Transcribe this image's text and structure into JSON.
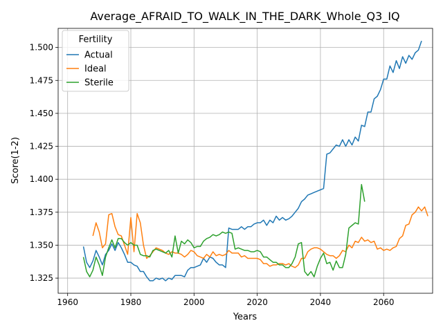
{
  "chart_data": {
    "type": "line",
    "title": "Average_AFRAID_TO_WALK_IN_THE_DARK_Whole_Q3_IQ",
    "xlabel": "Years",
    "ylabel": "Score(1-2)",
    "xlim": [
      1957,
      2075.5
    ],
    "ylim": [
      1.3135,
      1.5145
    ],
    "xticks": [
      1960,
      1980,
      2000,
      2020,
      2040,
      2060
    ],
    "yticks": [
      1.325,
      1.35,
      1.375,
      1.4,
      1.425,
      1.45,
      1.475,
      1.5
    ],
    "ytick_labels": [
      "1.325",
      "1.350",
      "1.375",
      "1.400",
      "1.425",
      "1.450",
      "1.475",
      "1.500"
    ],
    "grid": true,
    "legend": {
      "title": "Fertility",
      "placement": "top-left"
    },
    "series": [
      {
        "name": "Actual",
        "color": "#1f77b4",
        "x_start": 1965,
        "values": [
          1.349,
          1.337,
          1.333,
          1.338,
          1.346,
          1.341,
          1.335,
          1.343,
          1.346,
          1.351,
          1.346,
          1.352,
          1.348,
          1.343,
          1.337,
          1.337,
          1.335,
          1.334,
          1.33,
          1.33,
          1.326,
          1.323,
          1.323,
          1.325,
          1.324,
          1.325,
          1.323,
          1.325,
          1.324,
          1.327,
          1.327,
          1.327,
          1.326,
          1.331,
          1.333,
          1.333,
          1.334,
          1.335,
          1.34,
          1.337,
          1.341,
          1.34,
          1.337,
          1.335,
          1.335,
          1.333,
          1.363,
          1.362,
          1.362,
          1.362,
          1.364,
          1.362,
          1.364,
          1.364,
          1.366,
          1.367,
          1.367,
          1.369,
          1.365,
          1.369,
          1.367,
          1.372,
          1.369,
          1.371,
          1.369,
          1.37,
          1.372,
          1.375,
          1.378,
          1.383,
          1.385,
          1.388,
          1.389,
          1.39,
          1.391,
          1.392,
          1.393,
          1.419,
          1.42,
          1.423,
          1.426,
          1.425,
          1.43,
          1.425,
          1.43,
          1.426,
          1.432,
          1.429,
          1.441,
          1.44,
          1.451,
          1.451,
          1.461,
          1.463,
          1.468,
          1.476,
          1.476,
          1.486,
          1.481,
          1.49,
          1.484,
          1.493,
          1.488,
          1.494,
          1.491,
          1.496,
          1.498,
          1.505
        ]
      },
      {
        "name": "Ideal",
        "color": "#ff7f0e",
        "x_start": 1968,
        "values": [
          1.357,
          1.367,
          1.36,
          1.348,
          1.351,
          1.373,
          1.374,
          1.364,
          1.358,
          1.357,
          1.35,
          1.343,
          1.371,
          1.345,
          1.374,
          1.367,
          1.35,
          1.34,
          1.342,
          1.345,
          1.348,
          1.347,
          1.346,
          1.344,
          1.343,
          1.345,
          1.344,
          1.344,
          1.343,
          1.341,
          1.343,
          1.346,
          1.345,
          1.342,
          1.341,
          1.34,
          1.343,
          1.341,
          1.345,
          1.342,
          1.343,
          1.342,
          1.343,
          1.346,
          1.344,
          1.344,
          1.344,
          1.341,
          1.342,
          1.34,
          1.34,
          1.34,
          1.34,
          1.339,
          1.336,
          1.336,
          1.334,
          1.335,
          1.335,
          1.336,
          1.336,
          1.335,
          1.336,
          1.334,
          1.333,
          1.335,
          1.34,
          1.34,
          1.345,
          1.347,
          1.348,
          1.348,
          1.347,
          1.345,
          1.343,
          1.342,
          1.342,
          1.34,
          1.342,
          1.346,
          1.345,
          1.35,
          1.348,
          1.353,
          1.352,
          1.356,
          1.353,
          1.354,
          1.352,
          1.353,
          1.347,
          1.348,
          1.346,
          1.347,
          1.346,
          1.348,
          1.349,
          1.355,
          1.357,
          1.365,
          1.366,
          1.373,
          1.375,
          1.379,
          1.376,
          1.379,
          1.372
        ]
      },
      {
        "name": "Sterile",
        "color": "#2ca02c",
        "x_start": 1965,
        "values": [
          1.341,
          1.33,
          1.326,
          1.331,
          1.341,
          1.335,
          1.327,
          1.341,
          1.348,
          1.354,
          1.348,
          1.355,
          1.355,
          1.352,
          1.35,
          1.352,
          1.35,
          1.35,
          1.343,
          1.342,
          1.342,
          1.341,
          1.346,
          1.347,
          1.346,
          1.345,
          1.344,
          1.346,
          1.341,
          1.357,
          1.344,
          1.353,
          1.351,
          1.354,
          1.352,
          1.348,
          1.349,
          1.349,
          1.353,
          1.355,
          1.356,
          1.358,
          1.357,
          1.358,
          1.36,
          1.359,
          1.36,
          1.359,
          1.347,
          1.348,
          1.347,
          1.346,
          1.346,
          1.345,
          1.345,
          1.346,
          1.345,
          1.341,
          1.341,
          1.339,
          1.337,
          1.337,
          1.335,
          1.335,
          1.333,
          1.333,
          1.336,
          1.341,
          1.351,
          1.352,
          1.33,
          1.327,
          1.33,
          1.326,
          1.334,
          1.34,
          1.344,
          1.336,
          1.337,
          1.331,
          1.338,
          1.333,
          1.333,
          1.343,
          1.363,
          1.365,
          1.367,
          1.366,
          1.396,
          1.383
        ]
      }
    ]
  }
}
